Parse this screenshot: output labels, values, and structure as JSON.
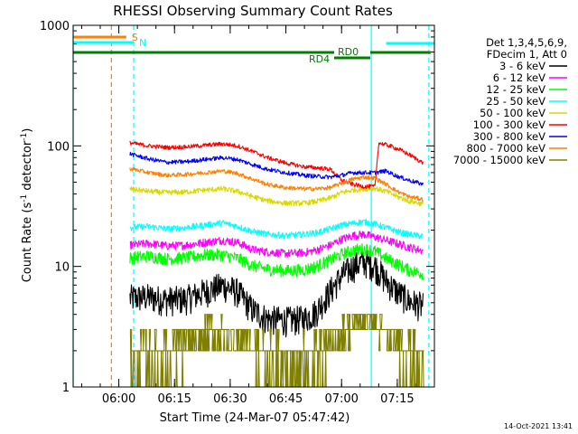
{
  "chart_data": {
    "type": "line",
    "title": "RHESSI Observing Summary Count Rates",
    "xlabel": "Start Time (24-Mar-07 05:47:42)",
    "ylabel_prefix": "Count Rate (s",
    "ylabel_sup": "-1",
    "ylabel_mid": " detector",
    "ylabel_suffix": ")",
    "y_scale": "log",
    "ylim": [
      1,
      1000
    ],
    "xlim": [
      "05:47:42",
      "07:25:00"
    ],
    "x_ticks": [
      "06:00",
      "06:15",
      "06:30",
      "06:45",
      "07:00",
      "07:15"
    ],
    "y_ticks": [
      "1",
      "10",
      "100",
      "1000"
    ],
    "legend_position": "right",
    "legend_header": [
      "Det 1,3,4,5,6,9,",
      "FDecim 1, Att 0"
    ],
    "series": [
      {
        "name": "3 - 6 keV",
        "color": "#000000",
        "points": [
          [
            "06:03",
            5.5
          ],
          [
            "06:08",
            5.6
          ],
          [
            "06:13",
            5.3
          ],
          [
            "06:18",
            5.4
          ],
          [
            "06:23",
            6.2
          ],
          [
            "06:28",
            7.0
          ],
          [
            "06:32",
            6.2
          ],
          [
            "06:36",
            4.4
          ],
          [
            "06:40",
            3.7
          ],
          [
            "06:45",
            3.6
          ],
          [
            "06:50",
            3.7
          ],
          [
            "06:53",
            4.2
          ],
          [
            "06:57",
            6.3
          ],
          [
            "07:00",
            8.4
          ],
          [
            "07:03",
            10.0
          ],
          [
            "07:06",
            11.0
          ],
          [
            "07:09",
            10.2
          ],
          [
            "07:12",
            7.6
          ],
          [
            "07:15",
            6.2
          ],
          [
            "07:18",
            5.2
          ],
          [
            "07:22",
            4.7
          ]
        ]
      },
      {
        "name": "6 - 12 keV",
        "color": "#ff00ff",
        "points": [
          [
            "06:03",
            15.0
          ],
          [
            "06:08",
            15.5
          ],
          [
            "06:13",
            14.8
          ],
          [
            "06:18",
            15.0
          ],
          [
            "06:23",
            15.8
          ],
          [
            "06:28",
            16.5
          ],
          [
            "06:32",
            15.8
          ],
          [
            "06:36",
            13.8
          ],
          [
            "06:40",
            13.2
          ],
          [
            "06:45",
            12.8
          ],
          [
            "06:50",
            13.0
          ],
          [
            "06:53",
            13.6
          ],
          [
            "06:57",
            15.0
          ],
          [
            "07:00",
            16.8
          ],
          [
            "07:03",
            18.0
          ],
          [
            "07:06",
            18.5
          ],
          [
            "07:09",
            17.5
          ],
          [
            "07:12",
            16.5
          ],
          [
            "07:15",
            15.5
          ],
          [
            "07:18",
            14.5
          ],
          [
            "07:22",
            13.5
          ]
        ]
      },
      {
        "name": "12 - 25 keV",
        "color": "#00ff00",
        "points": [
          [
            "06:03",
            11.8
          ],
          [
            "06:08",
            12.2
          ],
          [
            "06:13",
            11.6
          ],
          [
            "06:18",
            11.8
          ],
          [
            "06:23",
            12.5
          ],
          [
            "06:28",
            12.5
          ],
          [
            "06:32",
            11.7
          ],
          [
            "06:36",
            10.2
          ],
          [
            "06:40",
            9.5
          ],
          [
            "06:45",
            9.2
          ],
          [
            "06:50",
            9.4
          ],
          [
            "06:53",
            10.0
          ],
          [
            "06:57",
            11.3
          ],
          [
            "07:00",
            12.6
          ],
          [
            "07:03",
            13.6
          ],
          [
            "07:06",
            14.0
          ],
          [
            "07:09",
            13.4
          ],
          [
            "07:12",
            11.7
          ],
          [
            "07:15",
            10.5
          ],
          [
            "07:18",
            9.4
          ],
          [
            "07:22",
            8.7
          ]
        ]
      },
      {
        "name": "25 - 50 keV",
        "color": "#00ffff",
        "points": [
          [
            "06:03",
            21.0
          ],
          [
            "06:08",
            21.5
          ],
          [
            "06:13",
            20.5
          ],
          [
            "06:18",
            21.0
          ],
          [
            "06:23",
            22.0
          ],
          [
            "06:28",
            23.0
          ],
          [
            "06:32",
            21.5
          ],
          [
            "06:36",
            19.5
          ],
          [
            "06:40",
            18.5
          ],
          [
            "06:45",
            18.0
          ],
          [
            "06:50",
            18.5
          ],
          [
            "06:53",
            19.0
          ],
          [
            "06:57",
            20.5
          ],
          [
            "07:00",
            22.0
          ],
          [
            "07:03",
            22.8
          ],
          [
            "07:06",
            23.5
          ],
          [
            "07:09",
            22.5
          ],
          [
            "07:12",
            21.0
          ],
          [
            "07:15",
            19.5
          ],
          [
            "07:18",
            18.5
          ],
          [
            "07:22",
            17.8
          ]
        ]
      },
      {
        "name": "50 - 100 keV",
        "color": "#d8d800",
        "points": [
          [
            "06:03",
            44.0
          ],
          [
            "06:08",
            42.0
          ],
          [
            "06:13",
            41.0
          ],
          [
            "06:18",
            41.5
          ],
          [
            "06:23",
            43.0
          ],
          [
            "06:28",
            44.0
          ],
          [
            "06:32",
            42.0
          ],
          [
            "06:36",
            38.0
          ],
          [
            "06:40",
            35.0
          ],
          [
            "06:45",
            33.5
          ],
          [
            "06:50",
            33.5
          ],
          [
            "06:53",
            34.5
          ],
          [
            "06:57",
            37.0
          ],
          [
            "07:00",
            41.0
          ],
          [
            "07:03",
            43.0
          ],
          [
            "07:06",
            44.0
          ],
          [
            "07:09",
            44.5
          ],
          [
            "07:12",
            42.0
          ],
          [
            "07:15",
            38.0
          ],
          [
            "07:18",
            35.0
          ],
          [
            "07:22",
            33.0
          ]
        ]
      },
      {
        "name": "100 - 300 keV",
        "color": "#ff0000",
        "points": [
          [
            "06:03",
            106.0
          ],
          [
            "06:08",
            100.0
          ],
          [
            "06:13",
            97.0
          ],
          [
            "06:18",
            98.0
          ],
          [
            "06:23",
            101.0
          ],
          [
            "06:28",
            104.0
          ],
          [
            "06:32",
            100.0
          ],
          [
            "06:36",
            90.0
          ],
          [
            "06:40",
            80.0
          ],
          [
            "06:45",
            72.0
          ],
          [
            "06:50",
            67.0
          ],
          [
            "06:53",
            66.0
          ],
          [
            "06:57",
            64.0
          ],
          [
            "07:00",
            52.0
          ],
          [
            "07:03",
            48.0
          ],
          [
            "07:06",
            46.0
          ],
          [
            "07:09",
            46.0
          ],
          [
            "07:10",
            106.0
          ],
          [
            "07:13",
            100.0
          ],
          [
            "07:16",
            92.0
          ],
          [
            "07:19",
            82.0
          ],
          [
            "07:22",
            72.0
          ]
        ]
      },
      {
        "name": "300 - 800 keV",
        "color": "#0000ff",
        "points": [
          [
            "06:03",
            86.0
          ],
          [
            "06:08",
            78.0
          ],
          [
            "06:13",
            73.0
          ],
          [
            "06:18",
            74.0
          ],
          [
            "06:23",
            77.0
          ],
          [
            "06:28",
            80.0
          ],
          [
            "06:32",
            77.0
          ],
          [
            "06:36",
            70.0
          ],
          [
            "06:40",
            64.0
          ],
          [
            "06:45",
            60.0
          ],
          [
            "06:50",
            57.0
          ],
          [
            "06:53",
            56.0
          ],
          [
            "06:57",
            55.0
          ],
          [
            "07:00",
            57.0
          ],
          [
            "07:03",
            60.0
          ],
          [
            "07:06",
            60.0
          ],
          [
            "07:09",
            60.0
          ],
          [
            "07:12",
            62.0
          ],
          [
            "07:15",
            56.0
          ],
          [
            "07:18",
            52.0
          ],
          [
            "07:22",
            48.0
          ]
        ]
      },
      {
        "name": "800 - 7000 keV",
        "color": "#ff7f00",
        "points": [
          [
            "06:03",
            65.0
          ],
          [
            "06:08",
            60.0
          ],
          [
            "06:13",
            57.0
          ],
          [
            "06:18",
            58.0
          ],
          [
            "06:23",
            60.0
          ],
          [
            "06:28",
            62.0
          ],
          [
            "06:32",
            59.0
          ],
          [
            "06:36",
            53.0
          ],
          [
            "06:40",
            48.0
          ],
          [
            "06:45",
            45.0
          ],
          [
            "06:50",
            44.0
          ],
          [
            "06:53",
            44.0
          ],
          [
            "06:57",
            45.0
          ],
          [
            "07:00",
            49.0
          ],
          [
            "07:03",
            53.0
          ],
          [
            "07:06",
            55.0
          ],
          [
            "07:09",
            54.0
          ],
          [
            "07:12",
            48.0
          ],
          [
            "07:15",
            42.0
          ],
          [
            "07:18",
            38.0
          ],
          [
            "07:22",
            36.0
          ]
        ]
      },
      {
        "name": "7000 - 15000 keV",
        "color": "#808000",
        "points": [
          [
            "06:03",
            1.8
          ],
          [
            "06:10",
            1.9
          ],
          [
            "06:18",
            2.2
          ],
          [
            "06:25",
            3.0
          ],
          [
            "06:30",
            2.6
          ],
          [
            "06:38",
            2.0
          ],
          [
            "06:45",
            1.7
          ],
          [
            "06:52",
            1.8
          ],
          [
            "06:57",
            2.5
          ],
          [
            "07:02",
            3.2
          ],
          [
            "07:08",
            3.5
          ],
          [
            "07:14",
            2.4
          ],
          [
            "07:20",
            1.8
          ],
          [
            "07:22",
            1.6
          ]
        ]
      }
    ],
    "annotations": [
      {
        "label": "S",
        "color": "#ff7f00",
        "start": "05:47:42",
        "end": "06:02:00"
      },
      {
        "label": "N",
        "color": "#00ffff",
        "start": "05:47:42",
        "end": "06:04:00"
      },
      {
        "label": "RD0",
        "color": "#00ffff",
        "start": "07:12:00",
        "end": "07:25:00"
      },
      {
        "label": "RD4",
        "color": "#008000",
        "start": "05:47:42",
        "end": "07:24:00"
      }
    ],
    "vlines": [
      {
        "time": "05:47:42",
        "color": "#00ffff",
        "style": "solid"
      },
      {
        "time": "05:58:00",
        "color": "#ff7f00",
        "style": "dashed"
      },
      {
        "time": "06:04:00",
        "color": "#00ffff",
        "style": "dashed"
      },
      {
        "time": "07:08:00",
        "color": "#00ffff",
        "style": "solid"
      },
      {
        "time": "07:23:30",
        "color": "#00ffff",
        "style": "dashed"
      }
    ]
  },
  "footer": {
    "timestamp": "14-Oct-2021 13:41"
  }
}
